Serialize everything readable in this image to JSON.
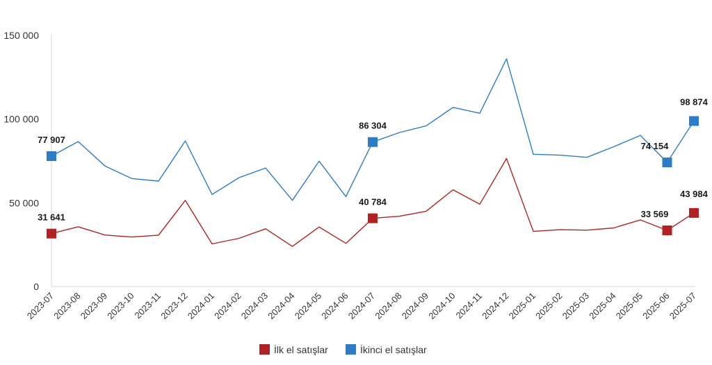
{
  "chart_data": {
    "type": "line",
    "categories": [
      "2023-07",
      "2023-08",
      "2023-09",
      "2023-10",
      "2023-11",
      "2023-12",
      "2024-01",
      "2024-02",
      "2024-03",
      "2024-04",
      "2024-05",
      "2024-06",
      "2024-07",
      "2024-08",
      "2024-09",
      "2024-10",
      "2024-11",
      "2024-12",
      "2025-01",
      "2025-02",
      "2025-03",
      "2025-04",
      "2025-05",
      "2025-06",
      "2025-07"
    ],
    "series": [
      {
        "name": "İlk el satışlar",
        "color": "#b22222",
        "values": [
          31641,
          35700,
          30800,
          29600,
          30700,
          51500,
          25500,
          28800,
          34500,
          24000,
          35600,
          25800,
          40784,
          42000,
          45000,
          57800,
          49200,
          76500,
          33000,
          34000,
          33700,
          35000,
          39800,
          33569,
          43984
        ],
        "markers": [
          0,
          12,
          23,
          24
        ],
        "labels": {
          "0": "31 641",
          "12": "40 784",
          "23": "33 569",
          "24": "43 984"
        }
      },
      {
        "name": "İkinci el satışlar",
        "color": "#2a7dc6",
        "values": [
          77907,
          86600,
          72000,
          64500,
          63000,
          87000,
          55000,
          65000,
          70800,
          51500,
          74900,
          53700,
          86304,
          92000,
          96000,
          107000,
          103500,
          136000,
          79000,
          78500,
          77200,
          83500,
          90300,
          74154,
          98874
        ],
        "markers": [
          0,
          12,
          23,
          24
        ],
        "labels": {
          "0": "77 907",
          "12": "86 304",
          "23": "74 154",
          "24": "98 874"
        }
      }
    ],
    "yticks": [
      "0",
      "50 000",
      "100 000",
      "150 000"
    ],
    "ylim": [
      0,
      150000
    ],
    "grid": false,
    "legend_position": "bottom-center"
  }
}
